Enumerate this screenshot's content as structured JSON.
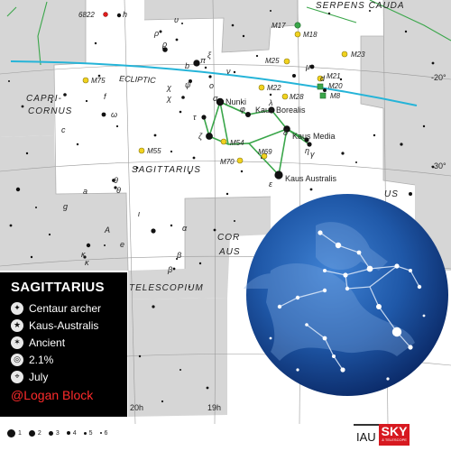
{
  "map": {
    "constellations": {
      "main": "SAGITTARIUS",
      "capricornus_1": "CAPRI-",
      "capricornus_2": "CORNUS",
      "serpens_cauda": "SERPENS CAUDA",
      "telescopium": "TELESCOPIUM",
      "corona_australis_1": "COR",
      "corona_australis_2": "AUS",
      "scutum_fragment": "US"
    },
    "ecliptic_label": "ECLIPTIC",
    "declination_labels": [
      "-20°",
      "-30°"
    ],
    "ra_labels": [
      "20h",
      "19h"
    ],
    "stars": {
      "nunki": "Nunki",
      "kaus_borealis": "Kaus Borealis",
      "kaus_media": "Kaus Media",
      "kaus_australis": "Kaus Australis",
      "sigma": "σ",
      "tau": "τ",
      "zeta": "ζ",
      "delta": "δ",
      "epsilon": "ε",
      "lambda": "λ",
      "gamma": "γ",
      "phi": "φ",
      "pi": "π",
      "omicron": "ο",
      "psi": "ψ",
      "rho": "ρ",
      "nu": "ν",
      "mu": "μ",
      "eta": "η",
      "omega": "ω",
      "chi": "χ",
      "theta": "θ",
      "iota": "ι",
      "alpha": "α",
      "beta": "β",
      "kappa": "κ",
      "upsilon": "υ",
      "xi": "ξ",
      "h": "h",
      "e": "e",
      "b": "b",
      "f": "f",
      "c": "c",
      "d": "d",
      "a": "a",
      "g": "g",
      "A": "A"
    },
    "deep_sky": [
      "M17",
      "M18",
      "M23",
      "M25",
      "M21",
      "M20",
      "M8",
      "M22",
      "M28",
      "M75",
      "M55",
      "M54",
      "M70",
      "M69",
      "6822"
    ]
  },
  "info": {
    "title": "SAGITTARIUS",
    "meaning": "Centaur archer",
    "brightest_star": "Kaus-Australis",
    "origin": "Ancient",
    "area_percent": "2.1%",
    "best_month": "July",
    "credit": "@Logan Block"
  },
  "legend": {
    "magnitudes": [
      "1",
      "2",
      "3",
      "4",
      "5",
      "6"
    ]
  },
  "logos": {
    "iau": "IAU",
    "sky": "SKY",
    "sky_sub": "& TELESCOPE"
  },
  "colors": {
    "ecliptic": "#25b4d8",
    "constellation_lines": "#3aa64a",
    "globular_cluster": "#f1d21f",
    "open_cluster": "#f1d21f",
    "nebula": "#36a84f",
    "outside_area": "#d7d7d7",
    "globe_dark": "#0a2c6e",
    "globe_light": "#2e6fc2",
    "credit": "#ff2b2b"
  }
}
